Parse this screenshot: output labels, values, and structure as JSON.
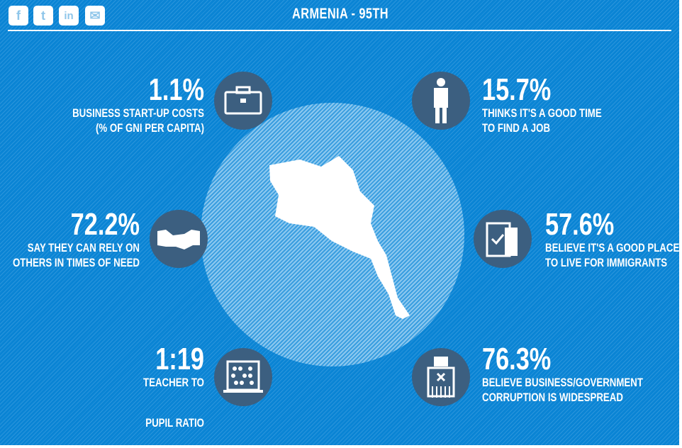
{
  "header": {
    "title": "ARMENIA - 95TH",
    "share": [
      {
        "icon": "facebook-icon",
        "glyph": "f"
      },
      {
        "icon": "twitter-icon",
        "glyph": "t"
      },
      {
        "icon": "linkedin-icon",
        "glyph": "in"
      },
      {
        "icon": "email-icon",
        "glyph": "✉"
      }
    ]
  },
  "stats": [
    {
      "value": "1.1%",
      "label1": "BUSINESS START-UP COSTS",
      "label2": "(% OF GNI PER CAPITA)",
      "icon": "briefcase-icon"
    },
    {
      "value": "15.7%",
      "label1": "THINKS IT'S A GOOD TIME",
      "label2": "TO FIND A JOB",
      "icon": "businessman-icon"
    },
    {
      "value": "72.2%",
      "label1": "SAY THEY CAN RELY ON",
      "label2": "OTHERS IN TIMES OF NEED",
      "icon": "handshake-icon"
    },
    {
      "value": "57.6%",
      "label1": "BELIEVE IT'S A GOOD PLACE",
      "label2": "TO LIVE FOR IMMIGRANTS",
      "icon": "clipboard-icon"
    },
    {
      "value": "1:19",
      "label1": "TEACHER TO",
      "label2": "PUPIL RATIO",
      "icon": "abacus-icon"
    },
    {
      "value": "76.3%",
      "label1": "BELIEVE BUSINESS/GOVERNMENT",
      "label2": "CORRUPTION IS WIDESPREAD",
      "icon": "shredder-icon"
    }
  ]
}
